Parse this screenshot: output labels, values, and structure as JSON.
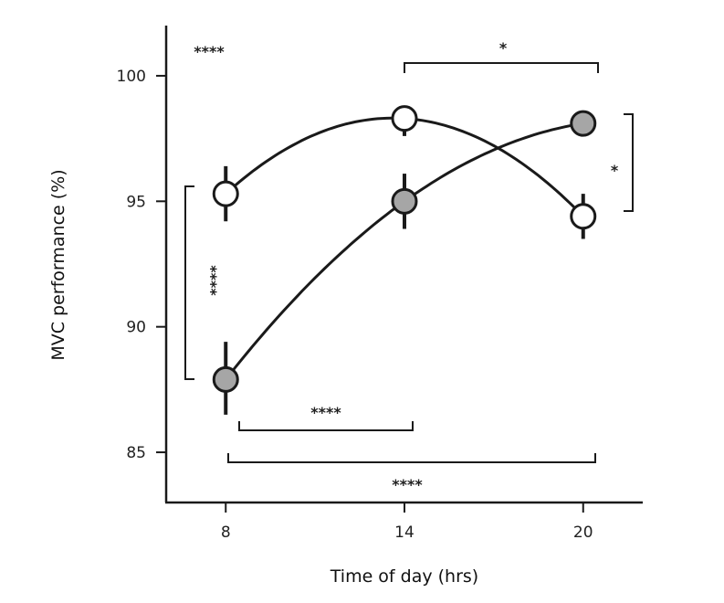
{
  "chart_data": {
    "type": "line",
    "xlabel": "Time of day (hrs)",
    "ylabel": "MVC performance (%)",
    "x": [
      8,
      14,
      20
    ],
    "xticks": [
      "8",
      "14",
      "20"
    ],
    "yticks": [
      "85",
      "90",
      "95",
      "100"
    ],
    "ylim": [
      83,
      102
    ],
    "xlim": [
      6,
      22
    ],
    "grid": false,
    "series": [
      {
        "marker": "open-circle",
        "values": [
          95.3,
          98.3,
          94.4
        ],
        "err_low": [
          94.2,
          97.6,
          93.5
        ],
        "err_high": [
          96.4,
          98.8,
          95.3
        ]
      },
      {
        "marker": "filled-circle",
        "values": [
          87.9,
          95.0,
          98.1
        ],
        "err_low": [
          86.5,
          93.9,
          97.6
        ],
        "err_high": [
          89.4,
          96.1,
          98.6
        ]
      }
    ],
    "annotations": {
      "top_left": "****",
      "bracket_14_20_top": "*",
      "bracket_20_vertical": "*",
      "bracket_8_vertical": "****",
      "bracket_8_14_bottom": "****",
      "bracket_8_20_bottom": "****"
    },
    "colors": {
      "line": "#1a1a1a",
      "filled_marker": "#a6a6a6",
      "open_marker": "#ffffff"
    }
  }
}
